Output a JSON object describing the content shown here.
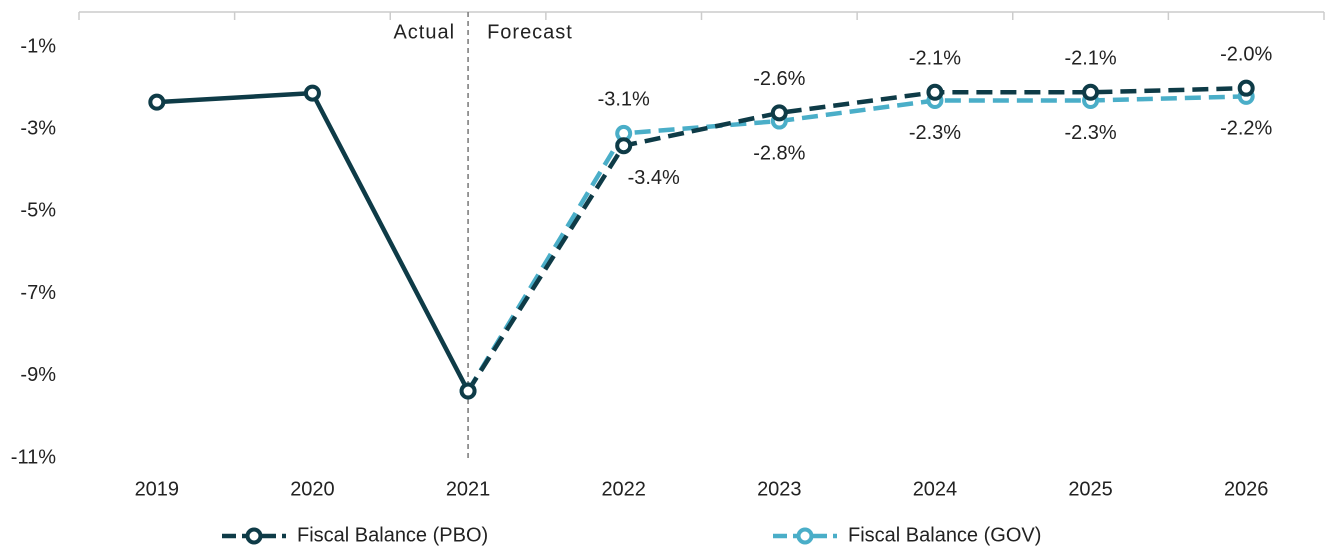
{
  "chart_data": {
    "type": "line",
    "categories": [
      "2019",
      "2020",
      "2021",
      "2022",
      "2023",
      "2024",
      "2025",
      "2026"
    ],
    "series": [
      {
        "name": "Fiscal Balance (PBO)",
        "color": "#0e3b47",
        "values": [
          -2.34,
          -2.12,
          -9.37,
          -3.4,
          -2.6,
          -2.1,
          -2.1,
          -2.0
        ],
        "value_labels": [
          null,
          null,
          null,
          "-3.4%",
          "-2.6%",
          "-2.1%",
          "-2.1%",
          "-2.0%"
        ]
      },
      {
        "name": "Fiscal Balance (GOV)",
        "color": "#4aaec8",
        "values": [
          null,
          null,
          -9.37,
          -3.1,
          -2.8,
          -2.3,
          -2.3,
          -2.2
        ],
        "value_labels": [
          null,
          null,
          null,
          "-3.1%",
          "-2.8%",
          "-2.3%",
          "-2.3%",
          "-2.2%"
        ]
      }
    ],
    "ylim": [
      -11,
      0
    ],
    "yticks": [
      {
        "value": -1,
        "label": "-1%"
      },
      {
        "value": -3,
        "label": "-3%"
      },
      {
        "value": -5,
        "label": "-5%"
      },
      {
        "value": -7,
        "label": "-7%"
      },
      {
        "value": -9,
        "label": "-9%"
      },
      {
        "value": -11,
        "label": "-11%"
      }
    ],
    "divider": {
      "category": "2021",
      "left_label": "Actual",
      "right_label": "Forecast"
    },
    "legend": "bottom"
  }
}
